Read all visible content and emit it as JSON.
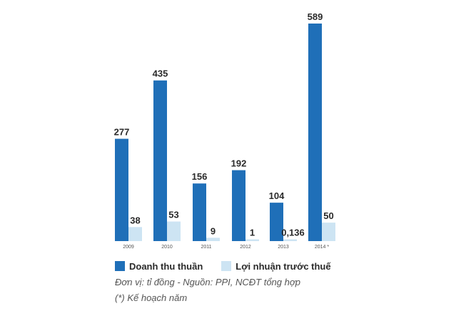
{
  "chart_data": {
    "type": "bar",
    "categories": [
      "2009",
      "2010",
      "2011",
      "2012",
      "2013",
      "2014 *"
    ],
    "series": [
      {
        "name": "Doanh thu thuần",
        "values": [
          277,
          435,
          156,
          192,
          104,
          589
        ],
        "labels": [
          "277",
          "435",
          "156",
          "192",
          "104",
          "589"
        ]
      },
      {
        "name": "Lợi nhuận trước thuế",
        "values": [
          38,
          53,
          9,
          1,
          0.136,
          50
        ],
        "labels": [
          "38",
          "53",
          "9",
          "1",
          "0,136",
          "50"
        ]
      }
    ],
    "colors": [
      "#1f6fb8",
      "#cde4f3"
    ],
    "ylim": [
      0,
      600
    ],
    "grid": false,
    "legend": "bottom-left"
  },
  "footnotes": {
    "unit_source": "Đơn vị: tỉ đồng  -  Nguồn: PPI, NCĐT tổng hợp",
    "plan_note": "(*) Kế hoạch năm"
  }
}
